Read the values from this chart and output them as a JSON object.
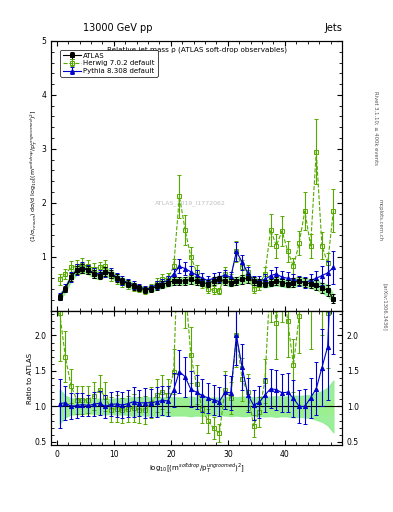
{
  "title_top": "13000 GeV pp",
  "title_right": "Jets",
  "plot_title": "Relative jet mass ρ (ATLAS soft-drop observables)",
  "ylabel_main": "(1/σ$_{resum}$) dσ/d log$_{10}$[(m$^{soft drop}$/p$_T^{ungroomed}$)$^2$]",
  "ylabel_ratio": "Ratio to ATLAS",
  "xlabel": "log$_{10}$[(m$^{soft drop}$/p$_T^{ungroomed}$)$^2$]",
  "watermark": "ATLAS_2019_I1772062",
  "rivet_text": "Rivet 3.1.10; ≥ 400k events",
  "arxiv_text": "[arXiv:1306.3436]",
  "mcplots_text": "mcplots.cern.ch",
  "legend_entries": [
    "ATLAS",
    "Herwig 7.0.2 default",
    "Pythia 8.308 default"
  ],
  "xlim": [
    -1,
    50
  ],
  "ylim_main": [
    0,
    5
  ],
  "ylim_ratio": [
    0.45,
    2.35
  ],
  "ratio_yticks": [
    0.5,
    1.0,
    1.5,
    2.0
  ],
  "main_yticks": [
    1,
    2,
    3,
    4,
    5
  ],
  "colors": {
    "atlas": "#000000",
    "herwig": "#55aa00",
    "pythia": "#0000cc",
    "band_green": "#90ee90",
    "band_yellow": "#ffff88"
  },
  "background_color": "#ffffff",
  "atlas_x": [
    0.5,
    1.5,
    2.5,
    3.5,
    4.5,
    5.5,
    6.5,
    7.5,
    8.5,
    9.5,
    10.5,
    11.5,
    12.5,
    13.5,
    14.5,
    15.5,
    16.5,
    17.5,
    18.5,
    19.5,
    20.5,
    21.5,
    22.5,
    23.5,
    24.5,
    25.5,
    26.5,
    27.5,
    28.5,
    29.5,
    30.5,
    31.5,
    32.5,
    33.5,
    34.5,
    35.5,
    36.5,
    37.5,
    38.5,
    39.5,
    40.5,
    41.5,
    42.5,
    43.5,
    44.5,
    45.5,
    46.5,
    47.5,
    48.5
  ],
  "atlas_y": [
    0.25,
    0.4,
    0.62,
    0.75,
    0.78,
    0.75,
    0.68,
    0.65,
    0.72,
    0.68,
    0.6,
    0.55,
    0.5,
    0.45,
    0.42,
    0.38,
    0.4,
    0.45,
    0.48,
    0.52,
    0.55,
    0.55,
    0.55,
    0.58,
    0.55,
    0.52,
    0.5,
    0.55,
    0.58,
    0.55,
    0.52,
    0.55,
    0.58,
    0.6,
    0.55,
    0.52,
    0.5,
    0.52,
    0.55,
    0.52,
    0.5,
    0.52,
    0.55,
    0.52,
    0.5,
    0.48,
    0.42,
    0.38,
    0.22
  ],
  "atlas_yerr": [
    0.06,
    0.06,
    0.07,
    0.08,
    0.08,
    0.07,
    0.07,
    0.07,
    0.08,
    0.07,
    0.07,
    0.06,
    0.06,
    0.06,
    0.05,
    0.05,
    0.05,
    0.06,
    0.06,
    0.07,
    0.07,
    0.07,
    0.07,
    0.08,
    0.07,
    0.07,
    0.06,
    0.07,
    0.07,
    0.07,
    0.07,
    0.07,
    0.08,
    0.08,
    0.07,
    0.07,
    0.07,
    0.07,
    0.08,
    0.07,
    0.07,
    0.08,
    0.08,
    0.08,
    0.08,
    0.09,
    0.09,
    0.1,
    0.08
  ],
  "herwig_x": [
    0.5,
    1.5,
    2.5,
    3.5,
    4.5,
    5.5,
    6.5,
    7.5,
    8.5,
    9.5,
    10.5,
    11.5,
    12.5,
    13.5,
    14.5,
    15.5,
    16.5,
    17.5,
    18.5,
    19.5,
    20.5,
    21.5,
    22.5,
    23.5,
    24.5,
    25.5,
    26.5,
    27.5,
    28.5,
    29.5,
    30.5,
    31.5,
    32.5,
    33.5,
    34.5,
    35.5,
    36.5,
    37.5,
    38.5,
    39.5,
    40.5,
    41.5,
    42.5,
    43.5,
    44.5,
    45.5,
    46.5,
    47.5,
    48.5
  ],
  "herwig_y": [
    0.58,
    0.68,
    0.8,
    0.82,
    0.85,
    0.82,
    0.78,
    0.8,
    0.82,
    0.65,
    0.58,
    0.52,
    0.48,
    0.44,
    0.4,
    0.36,
    0.42,
    0.52,
    0.58,
    0.6,
    0.82,
    2.12,
    1.5,
    1.0,
    0.72,
    0.5,
    0.4,
    0.38,
    0.36,
    0.68,
    0.58,
    1.1,
    0.8,
    0.72,
    0.4,
    0.48,
    0.68,
    1.5,
    1.2,
    1.48,
    1.1,
    0.82,
    1.25,
    1.85,
    1.2,
    2.95,
    1.2,
    0.88,
    1.85
  ],
  "herwig_yerr": [
    0.1,
    0.1,
    0.12,
    0.12,
    0.13,
    0.12,
    0.11,
    0.11,
    0.12,
    0.1,
    0.09,
    0.08,
    0.07,
    0.07,
    0.06,
    0.06,
    0.07,
    0.08,
    0.09,
    0.09,
    0.14,
    0.4,
    0.28,
    0.18,
    0.12,
    0.08,
    0.07,
    0.07,
    0.06,
    0.12,
    0.09,
    0.2,
    0.14,
    0.12,
    0.07,
    0.09,
    0.12,
    0.3,
    0.22,
    0.28,
    0.2,
    0.15,
    0.22,
    0.35,
    0.22,
    0.6,
    0.25,
    0.18,
    0.4
  ],
  "pythia_x": [
    0.5,
    1.5,
    2.5,
    3.5,
    4.5,
    5.5,
    6.5,
    7.5,
    8.5,
    9.5,
    10.5,
    11.5,
    12.5,
    13.5,
    14.5,
    15.5,
    16.5,
    17.5,
    18.5,
    19.5,
    20.5,
    21.5,
    22.5,
    23.5,
    24.5,
    25.5,
    26.5,
    27.5,
    28.5,
    29.5,
    30.5,
    31.5,
    32.5,
    33.5,
    34.5,
    35.5,
    36.5,
    37.5,
    38.5,
    39.5,
    40.5,
    41.5,
    42.5,
    43.5,
    44.5,
    45.5,
    46.5,
    47.5,
    48.5
  ],
  "pythia_y": [
    0.26,
    0.42,
    0.62,
    0.76,
    0.8,
    0.76,
    0.7,
    0.68,
    0.72,
    0.7,
    0.62,
    0.56,
    0.52,
    0.48,
    0.44,
    0.4,
    0.42,
    0.48,
    0.52,
    0.56,
    0.68,
    0.82,
    0.78,
    0.72,
    0.66,
    0.6,
    0.56,
    0.6,
    0.62,
    0.66,
    0.62,
    1.1,
    0.9,
    0.7,
    0.56,
    0.55,
    0.58,
    0.65,
    0.68,
    0.62,
    0.6,
    0.58,
    0.55,
    0.52,
    0.56,
    0.6,
    0.65,
    0.7,
    0.8
  ],
  "pythia_yerr": [
    0.06,
    0.07,
    0.09,
    0.1,
    0.1,
    0.09,
    0.09,
    0.08,
    0.09,
    0.09,
    0.08,
    0.08,
    0.07,
    0.07,
    0.06,
    0.06,
    0.06,
    0.07,
    0.07,
    0.08,
    0.1,
    0.13,
    0.12,
    0.11,
    0.1,
    0.09,
    0.08,
    0.09,
    0.09,
    0.1,
    0.09,
    0.18,
    0.14,
    0.11,
    0.09,
    0.09,
    0.09,
    0.11,
    0.12,
    0.11,
    0.11,
    0.1,
    0.1,
    0.1,
    0.11,
    0.14,
    0.18,
    0.22,
    0.3
  ]
}
